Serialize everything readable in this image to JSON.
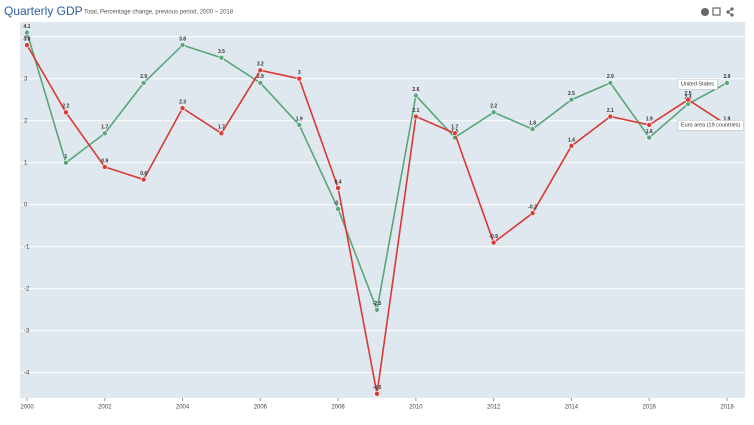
{
  "chart_data": {
    "type": "line",
    "title": "Quarterly GDP",
    "subtitle": "Total, Percentage change, previous period, 2000 – 2018",
    "x": [
      2000,
      2001,
      2002,
      2003,
      2004,
      2005,
      2006,
      2007,
      2008,
      2009,
      2010,
      2011,
      2012,
      2013,
      2014,
      2015,
      2016,
      2017,
      2018
    ],
    "series": [
      {
        "name": "United States",
        "color": "#5aa67a",
        "values": [
          4.1,
          1.0,
          1.7,
          2.9,
          3.8,
          3.5,
          2.9,
          1.9,
          -0.1,
          -2.5,
          2.6,
          1.6,
          2.2,
          1.8,
          2.5,
          2.9,
          1.6,
          2.4,
          2.9
        ]
      },
      {
        "name": "Euro area (19 countries)",
        "color": "#d93a35",
        "values": [
          3.8,
          2.2,
          0.9,
          0.6,
          2.3,
          1.7,
          3.2,
          3.0,
          0.4,
          -4.5,
          2.1,
          1.7,
          -0.9,
          -0.2,
          1.4,
          2.1,
          1.9,
          2.5,
          1.9
        ]
      }
    ],
    "xlim": [
      2000,
      2018
    ],
    "xticks": [
      2000,
      2002,
      2004,
      2006,
      2008,
      2010,
      2012,
      2014,
      2016,
      2018
    ],
    "ylim": [
      -4.6,
      4.35
    ],
    "yticks": [
      -4,
      -3,
      -2,
      -1,
      0,
      1,
      2,
      3,
      4
    ],
    "grid": true
  }
}
